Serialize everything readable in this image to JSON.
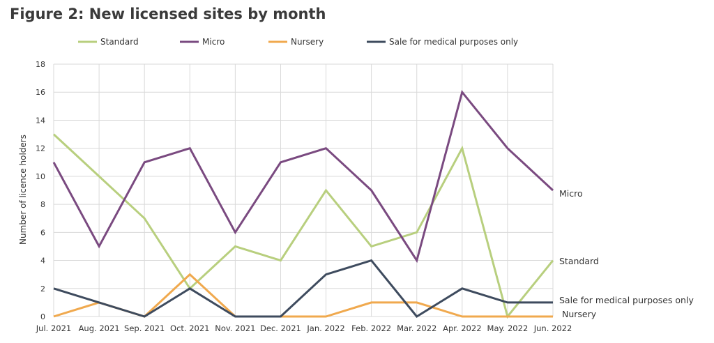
{
  "figure_title": "Figure 2: New licensed sites by month",
  "chart_data": {
    "type": "line",
    "title": "Figure 2: New licensed sites by month",
    "xlabel": "",
    "ylabel": "Number of licence holders",
    "categories": [
      "Jul. 2021",
      "Aug. 2021",
      "Sep. 2021",
      "Oct. 2021",
      "Nov. 2021",
      "Dec. 2021",
      "Jan. 2022",
      "Feb. 2022",
      "Mar. 2022",
      "Apr. 2022",
      "May. 2022",
      "Jun. 2022"
    ],
    "ylim": [
      0,
      18
    ],
    "yticks": [
      0,
      2,
      4,
      6,
      8,
      10,
      12,
      14,
      16,
      18
    ],
    "grid": true,
    "legend_position": "top",
    "series": [
      {
        "name": "Standard",
        "color": "#b8cf7e",
        "end_label": "Standard",
        "values": [
          13,
          10,
          7,
          2,
          5,
          4,
          9,
          5,
          6,
          12,
          0,
          4
        ]
      },
      {
        "name": "Micro",
        "color": "#7a4a80",
        "end_label": "Micro",
        "values": [
          11,
          5,
          11,
          12,
          6,
          11,
          12,
          9,
          4,
          16,
          12,
          9
        ]
      },
      {
        "name": "Nursery",
        "color": "#f0a94e",
        "end_label": "Nursery",
        "values": [
          0,
          1,
          0,
          3,
          0,
          0,
          0,
          1,
          1,
          0,
          0,
          0
        ]
      },
      {
        "name": "Sale for medical purposes only",
        "color": "#3e4b5e",
        "end_label": "Sale for medical purposes only",
        "values": [
          2,
          1,
          0,
          2,
          0,
          0,
          3,
          4,
          0,
          2,
          1,
          1
        ]
      }
    ]
  }
}
